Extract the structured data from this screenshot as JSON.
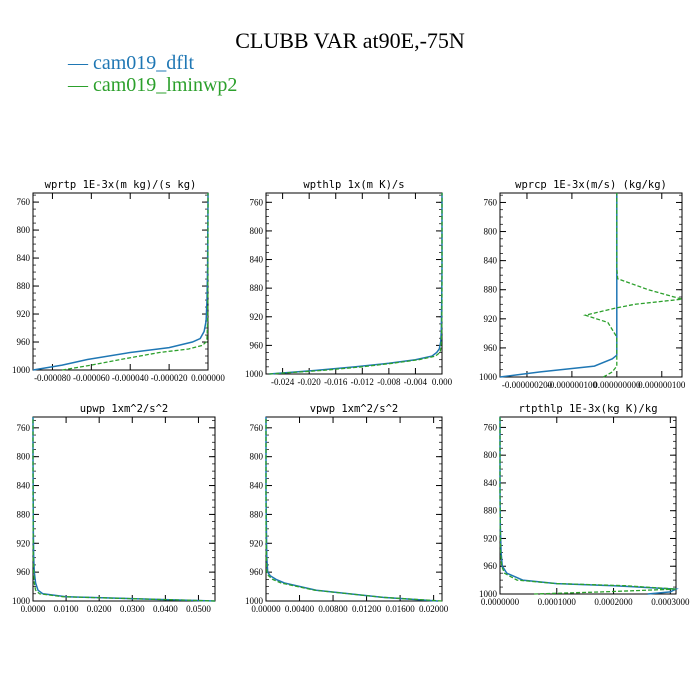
{
  "title": "CLUBB VAR at90E,-75N",
  "legend": [
    {
      "label": "cam019_dflt",
      "color": "#1f77b4"
    },
    {
      "label": "cam019_lminwp2",
      "color": "#2ca02c"
    }
  ],
  "chart_data": [
    {
      "type": "line",
      "title": "wprtp  1E-3x(m kg)/(s kg)",
      "xticks": [
        "-0.000080",
        "-0.000060",
        "-0.000040",
        "-0.000020",
        "0.000000"
      ],
      "xlim": [
        -9e-05,
        0.0
      ],
      "yticks": [
        "760",
        "800",
        "840",
        "880",
        "920",
        "960",
        "1000"
      ],
      "ylim": [
        1000,
        747
      ],
      "series": [
        {
          "name": "cam019_dflt",
          "y": [
            1000,
            993,
            985,
            975,
            968,
            960,
            955,
            945,
            930,
            900,
            850,
            800,
            760,
            747
          ],
          "x": [
            -9e-05,
            -7.5e-05,
            -6.2e-05,
            -4e-05,
            -2e-05,
            -8e-06,
            -4e-06,
            -2e-06,
            -1e-06,
            -5e-07,
            -2e-07,
            -1e-07,
            0.0,
            0.0
          ]
        },
        {
          "name": "cam019_lminwp2",
          "y": [
            1000,
            993,
            985,
            975,
            970,
            965,
            960,
            955,
            930,
            900,
            850,
            800,
            760,
            747
          ],
          "x": [
            -7.5e-05,
            -6e-05,
            -4.5e-05,
            -2.5e-05,
            -1e-05,
            -3e-06,
            -1e-06,
            -5e-07,
            -2e-07,
            -1e-07,
            -5e-08,
            0.0,
            0.0,
            0.0
          ]
        }
      ]
    },
    {
      "type": "line",
      "title": "wpthlp  1x(m K)/s",
      "xticks": [
        "-0.024",
        "-0.020",
        "-0.016",
        "-0.012",
        "-0.008",
        "-0.004",
        "0.000"
      ],
      "xlim": [
        -0.0265,
        0.0
      ],
      "yticks": [
        "760",
        "800",
        "840",
        "880",
        "920",
        "960",
        "1000"
      ],
      "ylim": [
        1000,
        747
      ],
      "series": [
        {
          "name": "cam019_dflt",
          "y": [
            1000,
            995,
            990,
            985,
            980,
            975,
            970,
            965,
            955,
            940,
            900,
            850,
            800,
            760,
            747
          ],
          "x": [
            -0.026,
            -0.019,
            -0.013,
            -0.008,
            -0.004,
            -0.0015,
            -0.0008,
            -0.0004,
            -0.0002,
            -0.0001,
            -5e-05,
            0.0,
            0.0,
            0.0,
            0.0
          ]
        },
        {
          "name": "cam019_lminwp2",
          "y": [
            1000,
            995,
            990,
            985,
            980,
            975,
            970,
            965,
            955,
            940,
            900,
            850,
            800,
            760,
            747
          ],
          "x": [
            -0.026,
            -0.018,
            -0.012,
            -0.0075,
            -0.0035,
            -0.001,
            -0.0003,
            -0.0002,
            -0.0001,
            -5e-05,
            0.0,
            0.0,
            0.0,
            0.0,
            0.0
          ]
        }
      ]
    },
    {
      "type": "line",
      "title": "wprcp  1E-3x(m/s) (kg/kg)",
      "xticks": [
        "-0.000000200",
        "-0.000000100",
        "0.000000000",
        "0.000000100"
      ],
      "xlim": [
        -2.6e-07,
        1.45e-07
      ],
      "yticks": [
        "760",
        "800",
        "840",
        "880",
        "920",
        "960",
        "1000"
      ],
      "ylim": [
        1000,
        747
      ],
      "series": [
        {
          "name": "cam019_dflt",
          "y": [
            1000,
            993,
            985,
            975,
            970,
            960,
            930,
            900,
            870,
            840,
            800,
            760,
            747
          ],
          "x": [
            -2.6e-07,
            -1.7e-07,
            -5e-08,
            -1e-08,
            0.0,
            0.0,
            0.0,
            0.0,
            0.0,
            0.0,
            0.0,
            0.0,
            0.0
          ]
        },
        {
          "name": "cam019_lminwp2",
          "y": [
            1000,
            993,
            985,
            975,
            960,
            945,
            925,
            915,
            905,
            900,
            893,
            880,
            865,
            850,
            800,
            760,
            747
          ],
          "x": [
            -3e-08,
            -1e-08,
            0.0,
            0.0,
            0.0,
            0.0,
            -2e-08,
            -7e-08,
            -1e-09,
            4e-08,
            1.45e-07,
            7e-08,
            2e-09,
            0.0,
            0.0,
            0.0,
            0.0
          ]
        }
      ]
    },
    {
      "type": "line",
      "title": "upwp  1xm^2/s^2",
      "xticks": [
        "0.0000",
        "0.0100",
        "0.0200",
        "0.0300",
        "0.0400",
        "0.0500"
      ],
      "xlim": [
        0.0,
        0.055
      ],
      "yticks": [
        "760",
        "800",
        "840",
        "880",
        "920",
        "960",
        "1000"
      ],
      "ylim": [
        1000,
        745
      ],
      "series": [
        {
          "name": "cam019_dflt",
          "y": [
            1000,
            998,
            996,
            994,
            990,
            985,
            975,
            960,
            940,
            900,
            850,
            800,
            760,
            745
          ],
          "x": [
            0.055,
            0.04,
            0.025,
            0.01,
            0.003,
            0.0015,
            0.0008,
            0.0004,
            0.0002,
            0.0001,
            5e-05,
            0.0,
            0.0,
            0.0
          ]
        },
        {
          "name": "cam019_lminwp2",
          "y": [
            1000,
            998,
            996,
            994,
            990,
            985,
            975,
            960,
            940,
            900,
            850,
            800,
            760,
            745
          ],
          "x": [
            0.055,
            0.04,
            0.024,
            0.009,
            0.002,
            0.0008,
            0.0004,
            0.0002,
            0.0001,
            5e-05,
            0.0,
            0.0,
            0.0,
            0.0
          ]
        }
      ]
    },
    {
      "type": "line",
      "title": "vpwp  1xm^2/s^2",
      "xticks": [
        "0.00000",
        "0.00400",
        "0.00800",
        "0.01200",
        "0.01600",
        "0.02000"
      ],
      "xlim": [
        0.0,
        0.021
      ],
      "yticks": [
        "760",
        "800",
        "840",
        "880",
        "920",
        "960",
        "1000"
      ],
      "ylim": [
        1000,
        745
      ],
      "series": [
        {
          "name": "cam019_dflt",
          "y": [
            1000,
            995,
            985,
            975,
            970,
            965,
            960,
            940,
            900,
            850,
            800,
            760,
            745
          ],
          "x": [
            0.0205,
            0.014,
            0.006,
            0.0022,
            0.0012,
            0.0005,
            0.0002,
            0.0001,
            5e-05,
            0.0,
            0.0,
            0.0,
            0.0
          ]
        },
        {
          "name": "cam019_lminwp2",
          "y": [
            1000,
            995,
            985,
            975,
            970,
            965,
            960,
            940,
            900,
            850,
            800,
            760,
            745
          ],
          "x": [
            0.021,
            0.014,
            0.0058,
            0.0018,
            0.0008,
            0.0003,
            0.0001,
            5e-05,
            0.0,
            0.0,
            0.0,
            0.0,
            0.0
          ]
        }
      ]
    },
    {
      "type": "line",
      "title": "rtpthlp  1E-3x(kg K)/kg",
      "xticks": [
        "0.0000000",
        "0.0001000",
        "0.0002000",
        "0.0003000"
      ],
      "xlim": [
        0.0,
        0.00031
      ],
      "yticks": [
        "760",
        "800",
        "840",
        "880",
        "920",
        "960",
        "1000"
      ],
      "ylim": [
        1000,
        745
      ],
      "series": [
        {
          "name": "cam019_dflt",
          "y": [
            1000,
            997,
            993,
            988,
            985,
            980,
            970,
            960,
            940,
            900,
            850,
            800,
            760,
            745
          ],
          "x": [
            0.00026,
            0.0003,
            0.00031,
            0.0002,
            0.0001,
            4e-05,
            1.2e-05,
            4e-06,
            2e-06,
            5e-07,
            0.0,
            0.0,
            0.0,
            0.0
          ]
        },
        {
          "name": "cam019_lminwp2",
          "y": [
            1000,
            997,
            993,
            988,
            985,
            980,
            970,
            960,
            940,
            900,
            850,
            800,
            760,
            745
          ],
          "x": [
            6e-05,
            0.00018,
            0.00031,
            0.00022,
            0.0001,
            3e-05,
            8e-06,
            3e-06,
            1e-06,
            3e-07,
            0.0,
            0.0,
            0.0,
            0.0
          ]
        }
      ]
    }
  ]
}
